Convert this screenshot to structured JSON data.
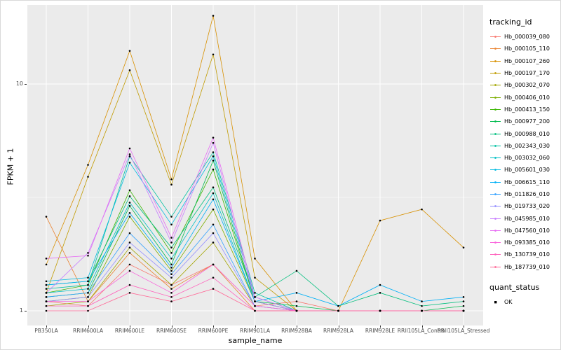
{
  "chart_data": {
    "type": "line",
    "title": "",
    "xlabel": "sample_name",
    "ylabel": "FPKM + 1",
    "y_scale": "log10",
    "ylim": [
      0.97,
      22
    ],
    "grid": true,
    "legend_position": "right",
    "legend_title": "tracking_id",
    "y_ticks": [
      {
        "label": "10",
        "value": 10
      },
      {
        "label": "1",
        "value": 1
      }
    ],
    "categories": [
      "PB350LA",
      "RRIM600LA",
      "RRIM600LE",
      "RRIM600SE",
      "RRIM600PE",
      "RRIM901LA",
      "RRIM928BA",
      "RRIM928LA",
      "RRIM928LE",
      "RRII105LA_Control",
      "RRII105LA_Stressed"
    ],
    "series": [
      {
        "name": "Hb_000039_080",
        "color": "#F8766D",
        "values": [
          1.1,
          1.05,
          1.6,
          1.3,
          1.6,
          1.05,
          1.1,
          1.0,
          1.0,
          1.0,
          1.0
        ]
      },
      {
        "name": "Hb_000105_110",
        "color": "#EA8331",
        "values": [
          2.6,
          1.1,
          1.8,
          1.25,
          1.6,
          1.0,
          1.0,
          1.0,
          1.0,
          1.0,
          1.0
        ]
      },
      {
        "name": "Hb_000107_260",
        "color": "#D89000",
        "values": [
          1.6,
          4.4,
          14.0,
          3.8,
          20.0,
          1.7,
          1.0,
          1.0,
          2.5,
          2.8,
          1.9
        ]
      },
      {
        "name": "Hb_000197_170",
        "color": "#C09B00",
        "values": [
          1.2,
          3.9,
          11.5,
          3.6,
          13.5,
          1.4,
          1.0,
          1.0,
          1.0,
          1.0,
          1.0
        ]
      },
      {
        "name": "Hb_000302_070",
        "color": "#A3A500",
        "values": [
          1.05,
          1.1,
          1.9,
          1.3,
          2.0,
          1.05,
          1.0,
          1.0,
          1.0,
          1.0,
          1.0
        ]
      },
      {
        "name": "Hb_000406_010",
        "color": "#7CAE00",
        "values": [
          1.1,
          1.15,
          2.6,
          1.5,
          2.8,
          1.1,
          1.0,
          1.0,
          1.0,
          1.0,
          1.0
        ]
      },
      {
        "name": "Hb_000413_150",
        "color": "#39B600",
        "values": [
          1.2,
          1.3,
          3.4,
          1.8,
          4.2,
          1.1,
          1.0,
          1.0,
          1.0,
          1.0,
          1.0
        ]
      },
      {
        "name": "Hb_000977_200",
        "color": "#00BB4E",
        "values": [
          1.15,
          1.2,
          2.9,
          1.6,
          4.6,
          1.1,
          1.05,
          1.0,
          1.0,
          1.0,
          1.05
        ]
      },
      {
        "name": "Hb_000988_010",
        "color": "#00BF7D",
        "values": [
          1.3,
          1.35,
          3.2,
          1.9,
          3.5,
          1.15,
          1.5,
          1.05,
          1.2,
          1.05,
          1.1
        ]
      },
      {
        "name": "Hb_002343_030",
        "color": "#00C1A3",
        "values": [
          1.25,
          1.3,
          4.8,
          2.6,
          5.0,
          1.2,
          1.0,
          1.0,
          1.0,
          1.0,
          1.0
        ]
      },
      {
        "name": "Hb_003032_060",
        "color": "#00BFC4",
        "values": [
          1.2,
          1.25,
          3.0,
          1.7,
          3.3,
          1.1,
          1.0,
          1.0,
          1.0,
          1.0,
          1.0
        ]
      },
      {
        "name": "Hb_005601_030",
        "color": "#00BAE0",
        "values": [
          1.35,
          1.4,
          4.5,
          2.4,
          4.8,
          1.15,
          1.0,
          1.0,
          1.0,
          1.0,
          1.0
        ]
      },
      {
        "name": "Hb_006615_110",
        "color": "#00B0F6",
        "values": [
          1.3,
          1.35,
          2.7,
          1.55,
          3.1,
          1.1,
          1.2,
          1.05,
          1.3,
          1.1,
          1.15
        ]
      },
      {
        "name": "Hb_011826_010",
        "color": "#35A2FF",
        "values": [
          1.15,
          1.2,
          2.2,
          1.45,
          2.4,
          1.05,
          1.0,
          1.0,
          1.0,
          1.0,
          1.0
        ]
      },
      {
        "name": "Hb_019733_020",
        "color": "#9590FF",
        "values": [
          1.1,
          1.15,
          2.0,
          1.4,
          2.2,
          1.05,
          1.0,
          1.0,
          1.0,
          1.0,
          1.0
        ]
      },
      {
        "name": "Hb_045985_010",
        "color": "#C77CFF",
        "values": [
          1.2,
          1.8,
          4.9,
          2.0,
          5.5,
          1.1,
          1.0,
          1.0,
          1.0,
          1.0,
          1.0
        ]
      },
      {
        "name": "Hb_047560_010",
        "color": "#E76BF3",
        "values": [
          1.7,
          1.75,
          5.2,
          2.1,
          5.8,
          1.15,
          1.0,
          1.0,
          1.0,
          1.0,
          1.0
        ]
      },
      {
        "name": "Hb_093385_010",
        "color": "#FA62DB",
        "values": [
          1.1,
          1.1,
          1.5,
          1.2,
          1.6,
          1.05,
          1.0,
          1.0,
          1.0,
          1.0,
          1.0
        ]
      },
      {
        "name": "Hb_130739_010",
        "color": "#FF62BC",
        "values": [
          1.05,
          1.05,
          1.3,
          1.15,
          1.4,
          1.0,
          1.0,
          1.0,
          1.0,
          1.0,
          1.0
        ]
      },
      {
        "name": "Hb_187739_010",
        "color": "#FF6A98",
        "values": [
          1.0,
          1.0,
          1.2,
          1.1,
          1.25,
          1.0,
          1.0,
          1.0,
          1.0,
          1.0,
          1.0
        ]
      }
    ],
    "quant_legend": {
      "title": "quant_status",
      "items": [
        {
          "label": "OK"
        }
      ]
    },
    "style": {
      "panel_background": "#EBEBEB",
      "gridline_color": "#FFFFFF",
      "point_color": "#000000",
      "tick_label_color": "#4d4d4d"
    }
  }
}
